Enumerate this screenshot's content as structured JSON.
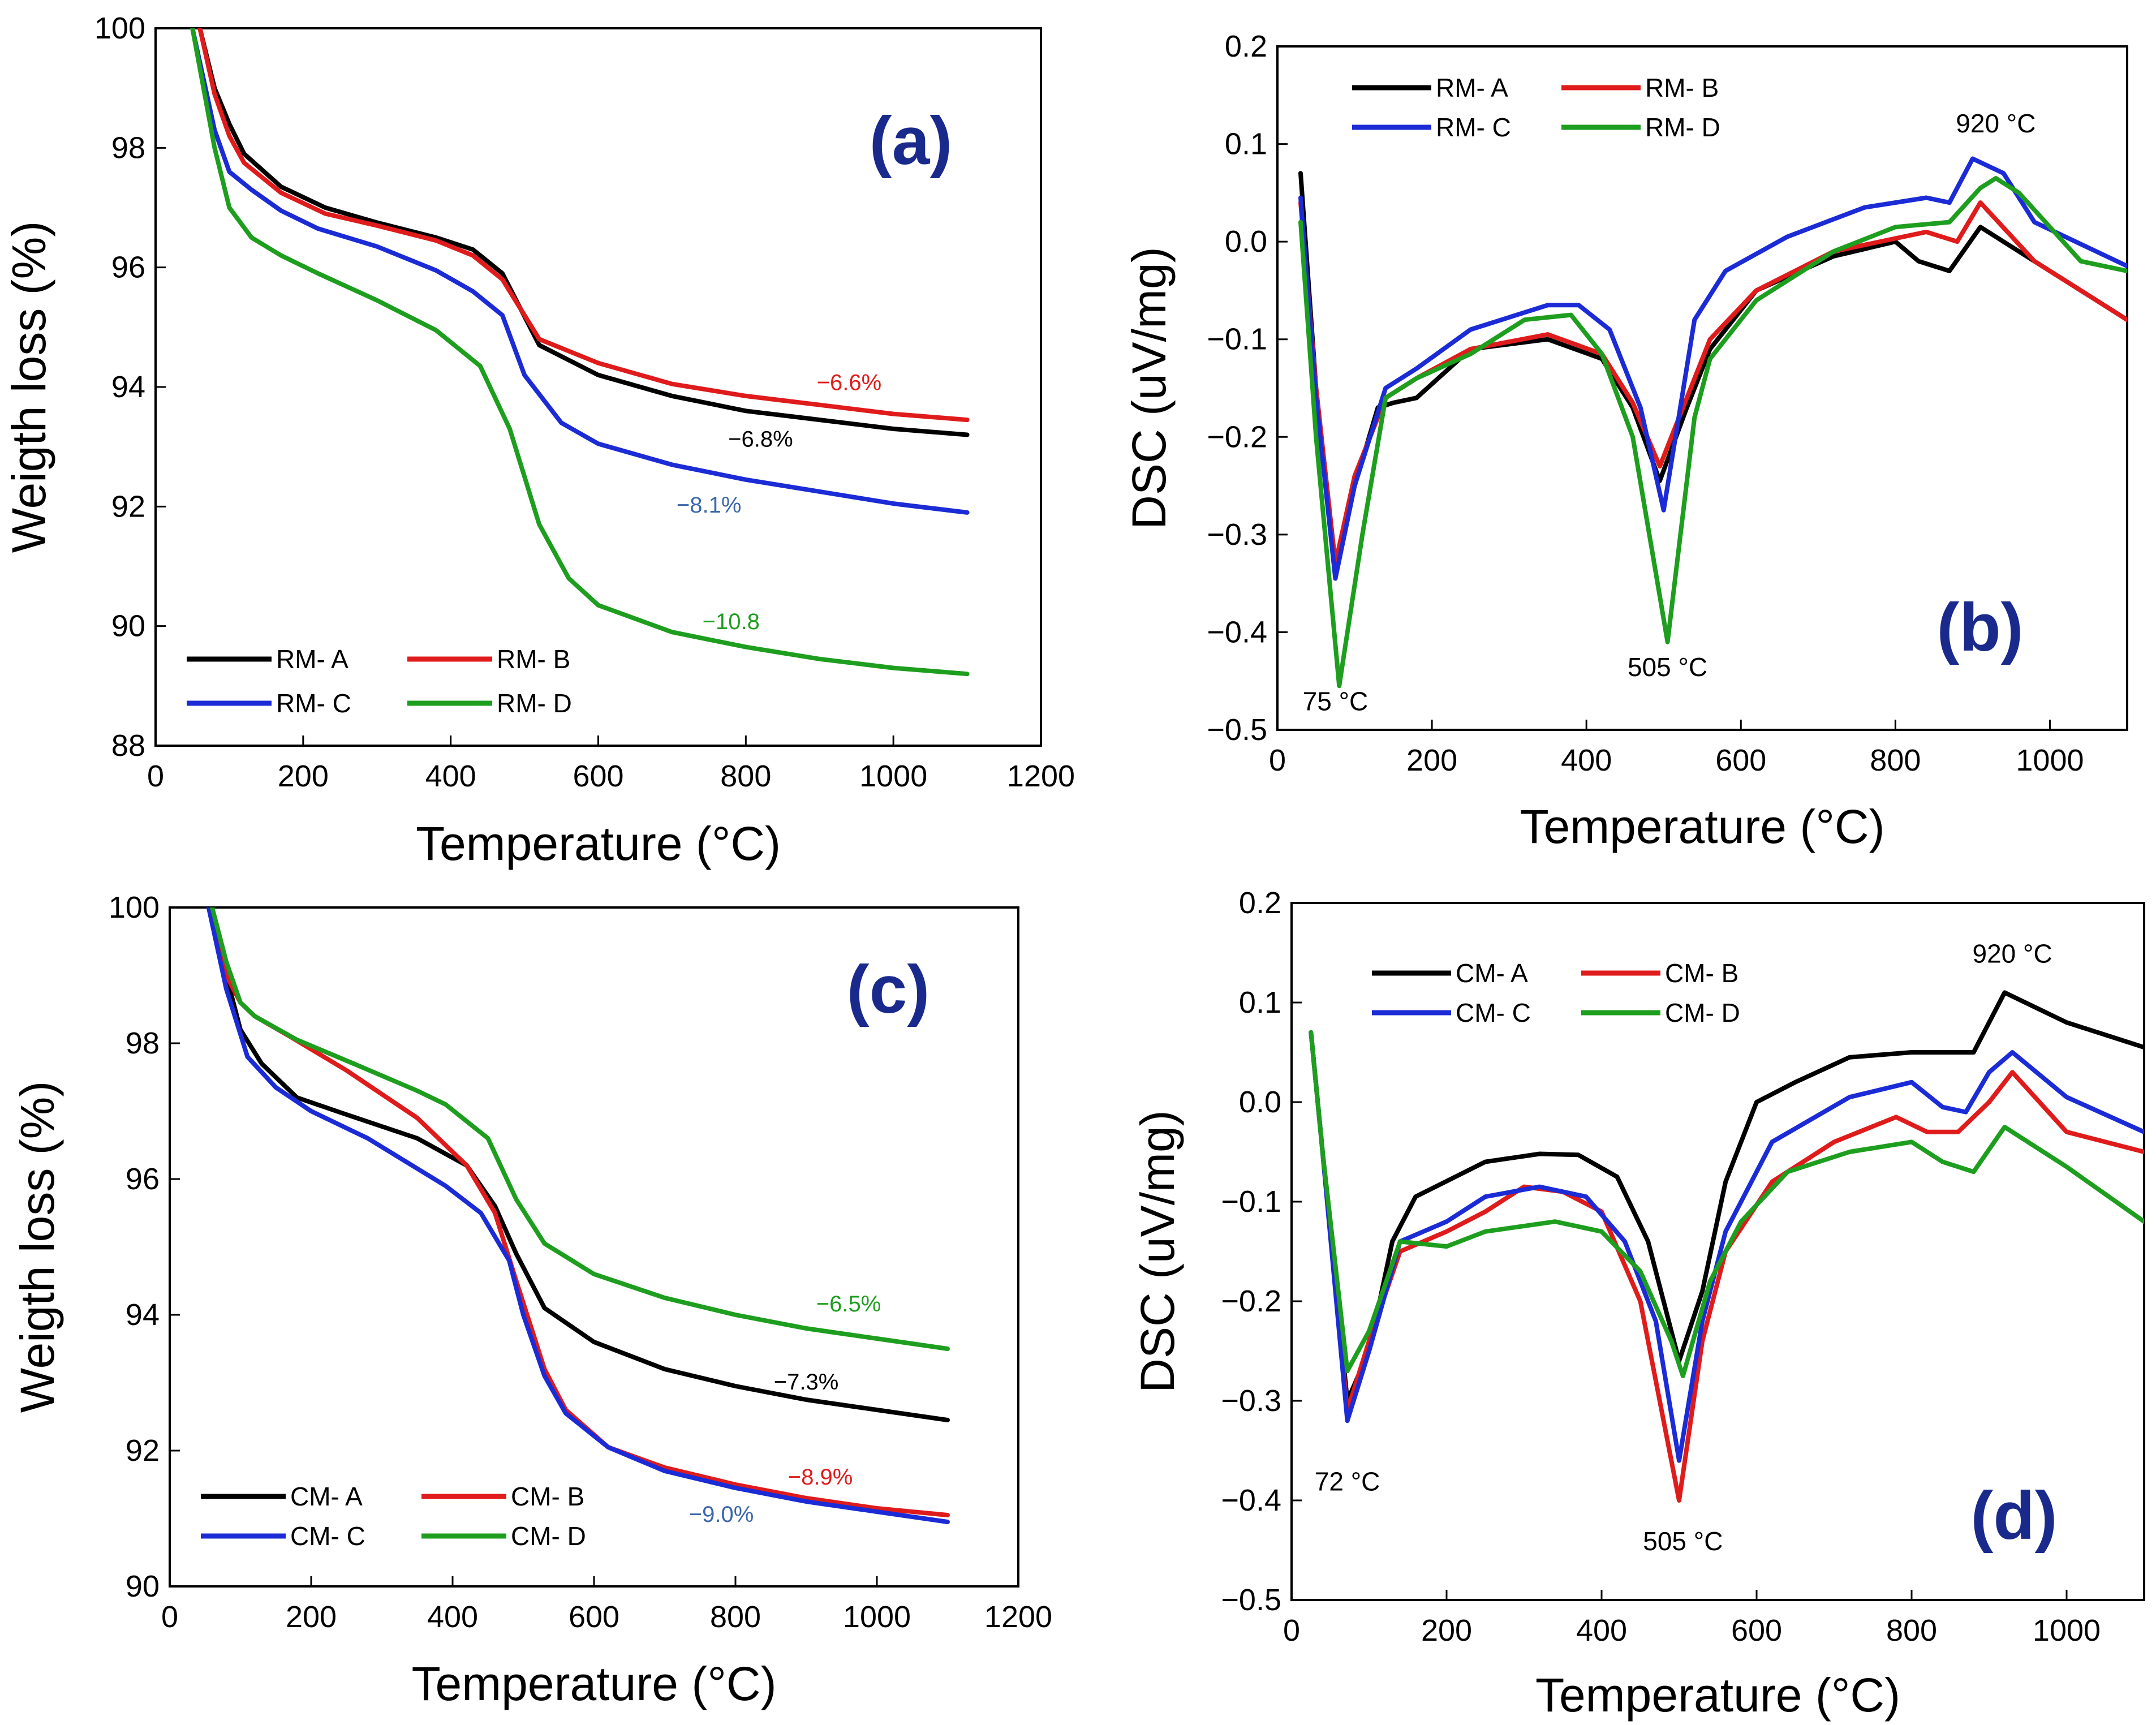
{
  "chart_data": [
    {
      "id": "a",
      "type": "line",
      "panel_label": "(a)",
      "xlabel": "Temperature (°C)",
      "ylabel": "Weigth loss (%)",
      "xlim": [
        0,
        1200
      ],
      "ylim": [
        88,
        100
      ],
      "xticks": [
        0,
        200,
        400,
        600,
        800,
        1000,
        1200
      ],
      "yticks": [
        88,
        90,
        92,
        94,
        96,
        98,
        100
      ],
      "legend_position": "bottom-left",
      "series": [
        {
          "name": "RM- A",
          "color": "#000000",
          "x": [
            60,
            80,
            100,
            120,
            170,
            230,
            300,
            380,
            430,
            470,
            520,
            600,
            700,
            800,
            900,
            1000,
            1100
          ],
          "y": [
            100,
            99.0,
            98.4,
            97.9,
            97.35,
            97.0,
            96.75,
            96.5,
            96.3,
            95.9,
            94.7,
            94.2,
            93.85,
            93.6,
            93.45,
            93.3,
            93.2
          ]
        },
        {
          "name": "RM- B",
          "color": "#e01b1b",
          "x": [
            60,
            80,
            100,
            120,
            170,
            230,
            300,
            380,
            430,
            470,
            520,
            600,
            700,
            800,
            900,
            1000,
            1100
          ],
          "y": [
            100,
            98.9,
            98.2,
            97.75,
            97.25,
            96.9,
            96.7,
            96.45,
            96.2,
            95.8,
            94.8,
            94.4,
            94.05,
            93.85,
            93.7,
            93.55,
            93.45
          ]
        },
        {
          "name": "RM- C",
          "color": "#1b2bd6",
          "x": [
            50,
            80,
            100,
            130,
            170,
            220,
            300,
            380,
            430,
            470,
            500,
            550,
            600,
            700,
            800,
            900,
            1000,
            1100
          ],
          "y": [
            100,
            98.3,
            97.6,
            97.3,
            96.95,
            96.65,
            96.35,
            95.95,
            95.6,
            95.2,
            94.2,
            93.4,
            93.05,
            92.7,
            92.45,
            92.25,
            92.05,
            91.9
          ]
        },
        {
          "name": "RM- D",
          "color": "#1e9e1e",
          "x": [
            50,
            80,
            100,
            130,
            170,
            220,
            300,
            380,
            440,
            480,
            520,
            560,
            600,
            700,
            800,
            900,
            1000,
            1100
          ],
          "y": [
            100,
            98.0,
            97.0,
            96.5,
            96.2,
            95.9,
            95.45,
            94.95,
            94.35,
            93.3,
            91.7,
            90.8,
            90.35,
            89.9,
            89.65,
            89.45,
            89.3,
            89.2
          ]
        }
      ],
      "annotations": [
        {
          "text": "−6.6%",
          "x": 940,
          "y": 93.95,
          "color": "#e01b1b"
        },
        {
          "text": "−6.8%",
          "x": 820,
          "y": 93.0,
          "color": "#000000"
        },
        {
          "text": "−8.1%",
          "x": 750,
          "y": 91.9,
          "color": "#3a66a8"
        },
        {
          "text": "−10.8",
          "x": 780,
          "y": 89.95,
          "color": "#1e9e1e"
        }
      ],
      "temperature_labels": []
    },
    {
      "id": "b",
      "type": "line",
      "panel_label": "(b)",
      "xlabel": "Temperature (°C)",
      "ylabel": "DSC (uV/mg)",
      "xlim": [
        0,
        1100
      ],
      "ylim": [
        -0.5,
        0.2
      ],
      "xticks": [
        0,
        200,
        400,
        600,
        800,
        1000
      ],
      "yticks": [
        -0.5,
        -0.4,
        -0.3,
        -0.2,
        -0.1,
        0.0,
        0.1,
        0.2
      ],
      "ytick_labels": [
        "−0.5",
        "−0.4",
        "−0.3",
        "−0.2",
        "−0.1",
        "0.0",
        "0.1",
        "0.2"
      ],
      "legend_position": "top-left",
      "series": [
        {
          "name": "RM- A",
          "color": "#000000",
          "x": [
            30,
            50,
            75,
            100,
            130,
            150,
            180,
            250,
            350,
            420,
            460,
            495,
            530,
            560,
            620,
            720,
            800,
            830,
            870,
            910,
            980,
            1100
          ],
          "y": [
            0.07,
            -0.15,
            -0.33,
            -0.25,
            -0.17,
            -0.165,
            -0.16,
            -0.11,
            -0.1,
            -0.12,
            -0.17,
            -0.245,
            -0.17,
            -0.11,
            -0.05,
            -0.015,
            0.0,
            -0.02,
            -0.03,
            0.015,
            -0.02,
            -0.08
          ]
        },
        {
          "name": "RM- B",
          "color": "#e01b1b",
          "x": [
            30,
            50,
            75,
            100,
            140,
            180,
            250,
            350,
            420,
            460,
            495,
            530,
            560,
            620,
            720,
            840,
            880,
            910,
            980,
            1100
          ],
          "y": [
            0.04,
            -0.15,
            -0.33,
            -0.24,
            -0.16,
            -0.14,
            -0.11,
            -0.095,
            -0.115,
            -0.165,
            -0.23,
            -0.16,
            -0.1,
            -0.05,
            -0.01,
            0.01,
            0.0,
            0.04,
            -0.02,
            -0.08
          ]
        },
        {
          "name": "RM- C",
          "color": "#1b2bd6",
          "x": [
            30,
            50,
            75,
            100,
            140,
            180,
            250,
            350,
            390,
            430,
            470,
            500,
            540,
            580,
            660,
            760,
            840,
            870,
            900,
            940,
            980,
            1100
          ],
          "y": [
            0.045,
            -0.16,
            -0.345,
            -0.25,
            -0.15,
            -0.13,
            -0.09,
            -0.065,
            -0.065,
            -0.09,
            -0.17,
            -0.275,
            -0.08,
            -0.03,
            0.005,
            0.035,
            0.045,
            0.04,
            0.085,
            0.07,
            0.02,
            -0.025
          ]
        },
        {
          "name": "RM- D",
          "color": "#1e9e1e",
          "x": [
            30,
            50,
            80,
            110,
            140,
            180,
            250,
            320,
            380,
            420,
            460,
            505,
            540,
            560,
            620,
            720,
            800,
            870,
            910,
            930,
            960,
            1000,
            1040,
            1100
          ],
          "y": [
            0.02,
            -0.2,
            -0.455,
            -0.3,
            -0.16,
            -0.14,
            -0.115,
            -0.08,
            -0.075,
            -0.115,
            -0.2,
            -0.41,
            -0.18,
            -0.12,
            -0.06,
            -0.01,
            0.015,
            0.02,
            0.055,
            0.065,
            0.05,
            0.015,
            -0.02,
            -0.03
          ]
        }
      ],
      "annotations": [],
      "temperature_labels": [
        {
          "text": "75 °C",
          "x": 75,
          "y": -0.48
        },
        {
          "text": "505 °C",
          "x": 505,
          "y": -0.445
        },
        {
          "text": "920 °C",
          "x": 930,
          "y": 0.112
        }
      ]
    },
    {
      "id": "c",
      "type": "line",
      "panel_label": "(c)",
      "xlabel": "Temperature (°C)",
      "ylabel": "Weigth loss (%)",
      "xlim": [
        0,
        1200
      ],
      "ylim": [
        90,
        100
      ],
      "xticks": [
        0,
        200,
        400,
        600,
        800,
        1000,
        1200
      ],
      "yticks": [
        90,
        92,
        94,
        96,
        98,
        100
      ],
      "legend_position": "bottom-left",
      "series": [
        {
          "name": "CM- A",
          "color": "#000000",
          "x": [
            55,
            80,
            100,
            130,
            180,
            250,
            350,
            420,
            460,
            490,
            530,
            600,
            700,
            800,
            900,
            1000,
            1100
          ],
          "y": [
            100,
            99.0,
            98.2,
            97.7,
            97.2,
            96.95,
            96.6,
            96.2,
            95.6,
            94.9,
            94.1,
            93.6,
            93.2,
            92.95,
            92.75,
            92.6,
            92.45
          ]
        },
        {
          "name": "CM- B",
          "color": "#e01b1b",
          "x": [
            55,
            80,
            100,
            120,
            170,
            250,
            350,
            420,
            460,
            490,
            530,
            560,
            620,
            700,
            800,
            900,
            1000,
            1100
          ],
          "y": [
            100,
            99.0,
            98.6,
            98.4,
            98.1,
            97.6,
            96.9,
            96.2,
            95.5,
            94.5,
            93.2,
            92.6,
            92.05,
            91.75,
            91.5,
            91.3,
            91.15,
            91.05
          ]
        },
        {
          "name": "CM- C",
          "color": "#1b2bd6",
          "x": [
            55,
            80,
            110,
            150,
            200,
            280,
            390,
            440,
            480,
            500,
            530,
            560,
            620,
            700,
            800,
            900,
            1000,
            1100
          ],
          "y": [
            100,
            98.8,
            97.8,
            97.35,
            97.0,
            96.6,
            95.9,
            95.5,
            94.8,
            94.0,
            93.1,
            92.55,
            92.05,
            91.7,
            91.45,
            91.25,
            91.1,
            90.95
          ]
        },
        {
          "name": "CM- D",
          "color": "#1e9e1e",
          "x": [
            60,
            80,
            100,
            120,
            180,
            260,
            350,
            390,
            450,
            490,
            530,
            600,
            700,
            800,
            900,
            1000,
            1100
          ],
          "y": [
            100,
            99.2,
            98.6,
            98.4,
            98.05,
            97.7,
            97.3,
            97.1,
            96.6,
            95.7,
            95.05,
            94.6,
            94.25,
            94.0,
            93.8,
            93.65,
            93.5
          ]
        }
      ],
      "annotations": [
        {
          "text": "−6.5%",
          "x": 960,
          "y": 94.05,
          "color": "#1e9e1e"
        },
        {
          "text": "−7.3%",
          "x": 900,
          "y": 92.9,
          "color": "#000000"
        },
        {
          "text": "−8.9%",
          "x": 920,
          "y": 91.5,
          "color": "#e01b1b"
        },
        {
          "text": "−9.0%",
          "x": 780,
          "y": 90.95,
          "color": "#3a66a8"
        }
      ],
      "temperature_labels": []
    },
    {
      "id": "d",
      "type": "line",
      "panel_label": "(d)",
      "xlabel": "Temperature (°C)",
      "ylabel": "DSC (uV/mg)",
      "xlim": [
        0,
        1100
      ],
      "ylim": [
        -0.5,
        0.2
      ],
      "xticks": [
        0,
        200,
        400,
        600,
        800,
        1000
      ],
      "yticks": [
        -0.5,
        -0.4,
        -0.3,
        -0.2,
        -0.1,
        0.0,
        0.1,
        0.2
      ],
      "ytick_labels": [
        "−0.5",
        "−0.4",
        "−0.3",
        "−0.2",
        "−0.1",
        "0.0",
        "0.1",
        "0.2"
      ],
      "legend_position": "top-left",
      "series": [
        {
          "name": "CM- A",
          "color": "#000000",
          "x": [
            25,
            40,
            72,
            100,
            130,
            160,
            250,
            320,
            370,
            420,
            460,
            500,
            530,
            560,
            600,
            650,
            720,
            800,
            840,
            880,
            920,
            1000,
            1100
          ],
          "y": [
            0.07,
            -0.05,
            -0.3,
            -0.25,
            -0.14,
            -0.095,
            -0.06,
            -0.052,
            -0.053,
            -0.075,
            -0.14,
            -0.26,
            -0.19,
            -0.08,
            0.0,
            0.02,
            0.045,
            0.05,
            0.05,
            0.05,
            0.11,
            0.08,
            0.055
          ]
        },
        {
          "name": "CM- B",
          "color": "#e01b1b",
          "x": [
            25,
            40,
            72,
            100,
            140,
            200,
            250,
            300,
            350,
            400,
            450,
            500,
            530,
            560,
            620,
            700,
            780,
            820,
            860,
            900,
            930,
            1000,
            1100
          ],
          "y": [
            0.07,
            -0.05,
            -0.31,
            -0.24,
            -0.15,
            -0.13,
            -0.11,
            -0.085,
            -0.09,
            -0.11,
            -0.2,
            -0.4,
            -0.24,
            -0.15,
            -0.08,
            -0.04,
            -0.015,
            -0.03,
            -0.03,
            0.0,
            0.03,
            -0.03,
            -0.05
          ]
        },
        {
          "name": "CM- C",
          "color": "#1b2bd6",
          "x": [
            25,
            40,
            72,
            100,
            140,
            200,
            250,
            320,
            380,
            430,
            470,
            500,
            530,
            560,
            620,
            720,
            800,
            840,
            870,
            900,
            930,
            1000,
            1100
          ],
          "y": [
            0.07,
            -0.05,
            -0.32,
            -0.25,
            -0.14,
            -0.12,
            -0.095,
            -0.085,
            -0.095,
            -0.14,
            -0.22,
            -0.36,
            -0.22,
            -0.13,
            -0.04,
            0.005,
            0.02,
            -0.005,
            -0.01,
            0.03,
            0.05,
            0.005,
            -0.03
          ]
        },
        {
          "name": "CM- D",
          "color": "#1e9e1e",
          "x": [
            25,
            40,
            72,
            100,
            140,
            200,
            250,
            340,
            400,
            450,
            490,
            505,
            540,
            580,
            640,
            720,
            800,
            840,
            880,
            920,
            1000,
            1100
          ],
          "y": [
            0.07,
            -0.05,
            -0.27,
            -0.23,
            -0.14,
            -0.145,
            -0.13,
            -0.12,
            -0.13,
            -0.17,
            -0.24,
            -0.275,
            -0.18,
            -0.12,
            -0.07,
            -0.05,
            -0.04,
            -0.06,
            -0.07,
            -0.025,
            -0.065,
            -0.12
          ]
        }
      ],
      "annotations": [],
      "temperature_labels": [
        {
          "text": "72 °C",
          "x": 72,
          "y": -0.39
        },
        {
          "text": "505 °C",
          "x": 505,
          "y": -0.45
        },
        {
          "text": "920 °C",
          "x": 930,
          "y": 0.14
        }
      ]
    }
  ]
}
